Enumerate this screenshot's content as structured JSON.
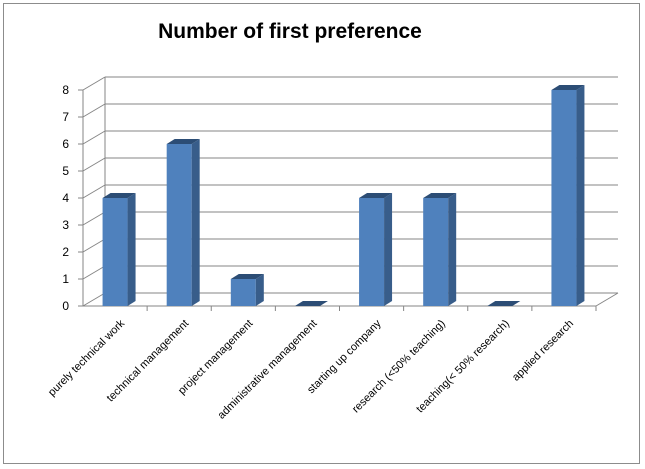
{
  "chart_data": {
    "type": "bar",
    "title": "Number of first preference",
    "xlabel": "",
    "ylabel": "",
    "categories": [
      "purely technical work",
      "technical management",
      "project management",
      "administrative management",
      "starting up company",
      "research (<50% teaching)",
      "teaching(< 50% research)",
      "applied research"
    ],
    "values": [
      4,
      6,
      1,
      0,
      4,
      4,
      0,
      8
    ],
    "ylim": [
      0,
      8
    ],
    "yticks": [
      "0",
      "1",
      "2",
      "3",
      "4",
      "5",
      "6",
      "7",
      "8"
    ],
    "grid": true,
    "legend": "none",
    "colors": {
      "bar_front": "#4f81bd",
      "bar_side": "#385d8a",
      "bar_top": "#2c4d75",
      "gridline": "#868686"
    }
  }
}
